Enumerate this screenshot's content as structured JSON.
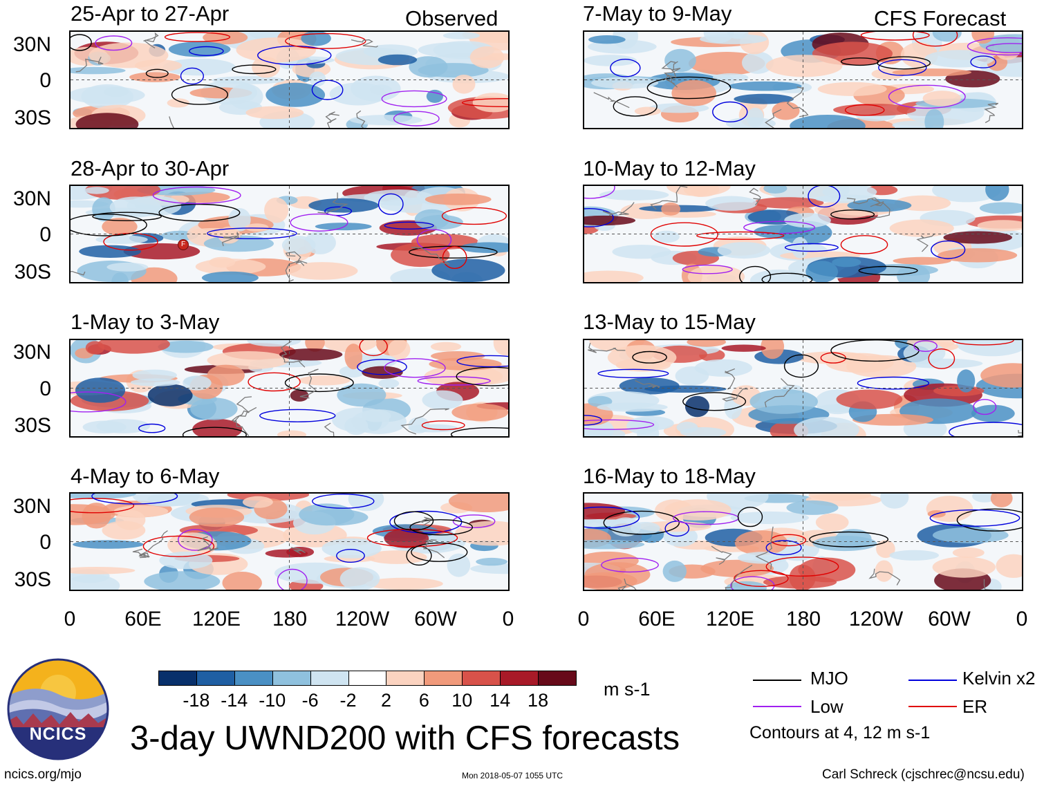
{
  "header": {
    "observed_label": "Observed",
    "forecast_label": "CFS Forecast"
  },
  "panels": [
    {
      "title": "25-Apr to 27-Apr",
      "column": "observed"
    },
    {
      "title": "28-Apr to 30-Apr",
      "column": "observed"
    },
    {
      "title": "1-May to 3-May",
      "column": "observed"
    },
    {
      "title": "4-May to 6-May",
      "column": "observed"
    },
    {
      "title": "7-May to 9-May",
      "column": "forecast"
    },
    {
      "title": "10-May to 12-May",
      "column": "forecast"
    },
    {
      "title": "13-May to 15-May",
      "column": "forecast"
    },
    {
      "title": "16-May to 18-May",
      "column": "forecast"
    }
  ],
  "lat_labels": [
    "30N",
    "0",
    "30S"
  ],
  "lon_labels": [
    "0",
    "60E",
    "120E",
    "180",
    "120W",
    "60W",
    "0"
  ],
  "colorbar": {
    "ticks": [
      "-18",
      "-14",
      "-10",
      "-6",
      "-2",
      "2",
      "6",
      "10",
      "14",
      "18"
    ],
    "colors": [
      "#08306b",
      "#1f5fa3",
      "#4a90c4",
      "#8fc1de",
      "#cfe4f1",
      "#ffffff",
      "#fbd3c0",
      "#f19a7b",
      "#d8524a",
      "#a81a28",
      "#670a1a"
    ],
    "units": "m s-1"
  },
  "legend": {
    "items": [
      {
        "label": "MJO",
        "color": "#000000"
      },
      {
        "label": "Kelvin x2",
        "color": "#0000dd"
      },
      {
        "label": "Low",
        "color": "#a020f0"
      },
      {
        "label": "ER",
        "color": "#e00000"
      }
    ],
    "note": "Contours at 4, 12 m s-1"
  },
  "logo_text": "NCICS",
  "main_title": "3-day UWND200 with CFS forecasts",
  "footer": {
    "left": "ncics.org/mjo",
    "center": "Mon 2018-05-07 1055 UTC",
    "right": "Carl Schreck (cjschrec@ncsu.edu)"
  },
  "tc_marker": "F"
}
